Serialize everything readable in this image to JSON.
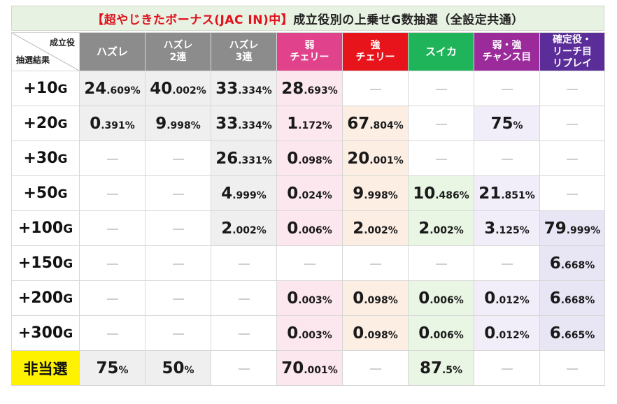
{
  "title": {
    "highlight": "【超やじきたボーナス(JAC IN)中】",
    "rest": "成立役別の上乗せG数抽選（全設定共通）"
  },
  "corner": {
    "top": "成立役",
    "bottom": "抽選結果"
  },
  "columns": [
    {
      "line1": "ハズレ",
      "line2": "",
      "color": "#8c8c8c"
    },
    {
      "line1": "ハズレ",
      "line2": "2連",
      "color": "#8c8c8c"
    },
    {
      "line1": "ハズレ",
      "line2": "3連",
      "color": "#8c8c8c"
    },
    {
      "line1": "弱",
      "line2": "チェリー",
      "color": "#e0428b"
    },
    {
      "line1": "強",
      "line2": "チェリー",
      "color": "#e8141c"
    },
    {
      "line1": "スイカ",
      "line2": "",
      "color": "#1fb45a"
    },
    {
      "line1": "弱・強",
      "line2": "チャンス目",
      "color": "#9b2a9b"
    },
    {
      "line1": "確定役・",
      "line2": "リーチ目",
      "line3": "リプレイ",
      "color": "#5a2d99"
    }
  ],
  "rows": [
    {
      "label": "+10",
      "unit": "G",
      "cells": [
        [
          "24",
          ".609%"
        ],
        [
          "40",
          ".002%"
        ],
        [
          "33",
          ".334%"
        ],
        [
          "28",
          ".693%"
        ],
        null,
        null,
        null,
        null
      ]
    },
    {
      "label": "+20",
      "unit": "G",
      "cells": [
        [
          "0",
          ".391%"
        ],
        [
          "9",
          ".998%"
        ],
        [
          "33",
          ".334%"
        ],
        [
          "1",
          ".172%"
        ],
        [
          "67",
          ".804%"
        ],
        null,
        [
          "75",
          "%"
        ],
        null
      ]
    },
    {
      "label": "+30",
      "unit": "G",
      "cells": [
        null,
        null,
        [
          "26",
          ".331%"
        ],
        [
          "0",
          ".098%"
        ],
        [
          "20",
          ".001%"
        ],
        null,
        null,
        null
      ]
    },
    {
      "label": "+50",
      "unit": "G",
      "cells": [
        null,
        null,
        [
          "4",
          ".999%"
        ],
        [
          "0",
          ".024%"
        ],
        [
          "9",
          ".998%"
        ],
        [
          "10",
          ".486%"
        ],
        [
          "21",
          ".851%"
        ],
        null
      ]
    },
    {
      "label": "+100",
      "unit": "G",
      "cells": [
        null,
        null,
        [
          "2",
          ".002%"
        ],
        [
          "0",
          ".006%"
        ],
        [
          "2",
          ".002%"
        ],
        [
          "2",
          ".002%"
        ],
        [
          "3",
          ".125%"
        ],
        [
          "79",
          ".999%"
        ]
      ]
    },
    {
      "label": "+150",
      "unit": "G",
      "cells": [
        null,
        null,
        null,
        null,
        null,
        null,
        null,
        [
          "6",
          ".668%"
        ]
      ]
    },
    {
      "label": "+200",
      "unit": "G",
      "cells": [
        null,
        null,
        null,
        [
          "0",
          ".003%"
        ],
        [
          "0",
          ".098%"
        ],
        [
          "0",
          ".006%"
        ],
        [
          "0",
          ".012%"
        ],
        [
          "6",
          ".668%"
        ]
      ]
    },
    {
      "label": "+300",
      "unit": "G",
      "cells": [
        null,
        null,
        null,
        [
          "0",
          ".003%"
        ],
        [
          "0",
          ".098%"
        ],
        [
          "0",
          ".006%"
        ],
        [
          "0",
          ".012%"
        ],
        [
          "6",
          ".665%"
        ]
      ]
    },
    {
      "label": "非当選",
      "unit": "",
      "miss": true,
      "cells": [
        [
          "75",
          "%"
        ],
        [
          "50",
          "%"
        ],
        null,
        [
          "70",
          ".001%"
        ],
        null,
        [
          "87",
          ".5%"
        ],
        null,
        null
      ]
    }
  ],
  "accent": {
    "title_red": "#e0101c",
    "miss_yellow": "#fff200"
  }
}
